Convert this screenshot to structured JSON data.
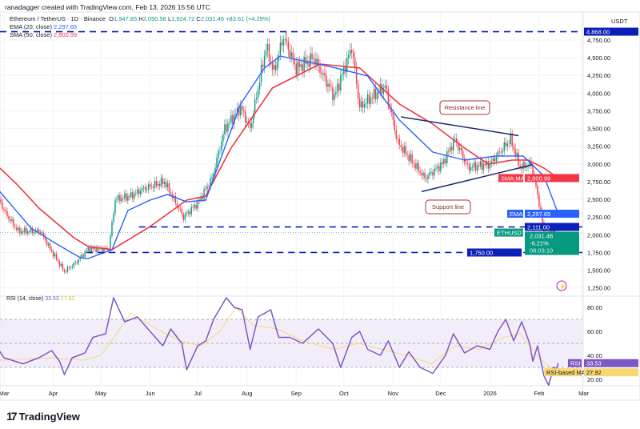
{
  "header": {
    "credit": "ranadagger created with TradingView.com, Feb 13, 2026 15:56 UTC"
  },
  "legend": {
    "symbol": "Ethereum / TetherUS · 1D · Binance",
    "open_label": "O",
    "open": "1,947.85",
    "high_label": "H",
    "high": "2,050.58",
    "low_label": "L",
    "low": "1,924.72",
    "close_label": "C",
    "close": "2,031.46",
    "change": "+83.61 (+4.29%)",
    "ema_label": "EMA (20, close)",
    "ema_value": "2,297.65",
    "sma_label": "SMA (50, close)",
    "sma_value": "2,800.99"
  },
  "rsi_legend": {
    "label": "RSI (14, close)",
    "rsi_value": "33.53",
    "ma_value": "27.92"
  },
  "price_axis": {
    "unit": "USDT"
  },
  "badges": {
    "sma_name": "SMA:MA",
    "sma_value": "2,800.99",
    "ema_name": "EMA",
    "ema_value": "2,297.65",
    "sym_name": "ETHUSDT",
    "last": "2,031.46",
    "pct": "-9.21%",
    "countdown": "08:03:10",
    "rsi_name": "RSI",
    "rsi_value": "33.53",
    "rsima_name": "RSI-based MA",
    "rsima_value": "27.92"
  },
  "brand": {
    "name": "TradingView"
  },
  "colors": {
    "up": "#089981",
    "down": "#f23645",
    "ema": "#2962ff",
    "sma": "#f23645",
    "level": "#0c1fb8",
    "trend": "#1b2a6b",
    "rsi": "#7e57c2",
    "rsi_ma": "#f7d774",
    "rsi_band": "#ede7f6"
  },
  "chart_data": [
    {
      "type": "candlestick",
      "title": "Ethereum / TetherUS · 1D · Binance",
      "ylabel": "USDT",
      "ylim": [
        1150,
        4950
      ],
      "y_ticks": [
        1250,
        1500,
        1750,
        2000,
        2250,
        2500,
        2750,
        3000,
        3250,
        3500,
        3750,
        4000,
        4250,
        4500,
        4750
      ],
      "y_tick_labels": [
        "1,250.00",
        "1,500.00",
        "1,750.00",
        "2,000.00",
        "2,250.00",
        "2,500.00",
        "2,750.00",
        "3,000.00",
        "3,250.00",
        "3,500.00",
        "3,750.00",
        "4,000.00",
        "4,250.00",
        "4,500.00",
        "4,750.00"
      ],
      "x_ticks": [
        [
          "2025-03-01",
          "Mar"
        ],
        [
          "2025-04-01",
          "Apr"
        ],
        [
          "2025-05-01",
          "May"
        ],
        [
          "2025-06-01",
          "Jun"
        ],
        [
          "2025-07-01",
          "Jul"
        ],
        [
          "2025-08-01",
          "Aug"
        ],
        [
          "2025-09-01",
          "Sep"
        ],
        [
          "2025-10-01",
          "Oct"
        ],
        [
          "2025-11-01",
          "Nov"
        ],
        [
          "2025-12-01",
          "Dec"
        ],
        [
          "2026-01-01",
          "2026"
        ],
        [
          "2026-02-01",
          "Feb"
        ],
        [
          "2026-03-01",
          "Mar"
        ]
      ],
      "close_path": [
        [
          "2025-02-26",
          2500
        ],
        [
          "2025-03-02",
          2300
        ],
        [
          "2025-03-10",
          2050
        ],
        [
          "2025-03-24",
          2050
        ],
        [
          "2025-03-30",
          1800
        ],
        [
          "2025-04-08",
          1480
        ],
        [
          "2025-04-15",
          1600
        ],
        [
          "2025-04-23",
          1800
        ],
        [
          "2025-05-06",
          1800
        ],
        [
          "2025-05-10",
          2500
        ],
        [
          "2025-05-20",
          2550
        ],
        [
          "2025-05-28",
          2650
        ],
        [
          "2025-06-10",
          2750
        ],
        [
          "2025-06-22",
          2250
        ],
        [
          "2025-07-01",
          2450
        ],
        [
          "2025-07-10",
          2800
        ],
        [
          "2025-07-18",
          3500
        ],
        [
          "2025-07-28",
          3800
        ],
        [
          "2025-08-03",
          3500
        ],
        [
          "2025-08-13",
          4650
        ],
        [
          "2025-08-18",
          4300
        ],
        [
          "2025-08-24",
          4800
        ],
        [
          "2025-09-01",
          4350
        ],
        [
          "2025-09-12",
          4500
        ],
        [
          "2025-09-25",
          3950
        ],
        [
          "2025-10-06",
          4650
        ],
        [
          "2025-10-11",
          3800
        ],
        [
          "2025-10-27",
          4100
        ],
        [
          "2025-11-04",
          3300
        ],
        [
          "2025-11-21",
          2800
        ],
        [
          "2025-12-02",
          3000
        ],
        [
          "2025-12-10",
          3350
        ],
        [
          "2025-12-18",
          2950
        ],
        [
          "2026-01-01",
          3000
        ],
        [
          "2026-01-14",
          3350
        ],
        [
          "2026-01-20",
          2950
        ],
        [
          "2026-01-27",
          3000
        ],
        [
          "2026-02-01",
          2450
        ],
        [
          "2026-02-05",
          1900
        ],
        [
          "2026-02-08",
          2100
        ],
        [
          "2026-02-12",
          1950
        ],
        [
          "2026-02-13",
          2031.46
        ]
      ],
      "ema20": [
        [
          "2025-02-26",
          2620
        ],
        [
          "2025-03-18",
          2095
        ],
        [
          "2025-04-01",
          1900
        ],
        [
          "2025-04-18",
          1677
        ],
        [
          "2025-04-23",
          1665
        ],
        [
          "2025-05-08",
          1790
        ],
        [
          "2025-05-18",
          2343
        ],
        [
          "2025-06-01",
          2490
        ],
        [
          "2025-06-12",
          2570
        ],
        [
          "2025-06-24",
          2465
        ],
        [
          "2025-07-06",
          2490
        ],
        [
          "2025-07-28",
          3846
        ],
        [
          "2025-08-12",
          4355
        ],
        [
          "2025-08-22",
          4524
        ],
        [
          "2025-09-26",
          4355
        ],
        [
          "2025-10-16",
          4242
        ],
        [
          "2025-11-05",
          3620
        ],
        [
          "2025-11-26",
          3168
        ],
        [
          "2025-12-16",
          3055
        ],
        [
          "2026-01-05",
          3112
        ],
        [
          "2026-01-22",
          3112
        ],
        [
          "2026-02-04",
          2829
        ],
        [
          "2026-02-13",
          2297.65
        ]
      ],
      "sma50": [
        [
          "2025-02-26",
          2950
        ],
        [
          "2025-03-09",
          2716
        ],
        [
          "2025-03-23",
          2377
        ],
        [
          "2025-04-14",
          1959
        ],
        [
          "2025-04-23",
          1835
        ],
        [
          "2025-05-08",
          1790
        ],
        [
          "2025-06-01",
          2117
        ],
        [
          "2025-06-24",
          2490
        ],
        [
          "2025-07-06",
          2546
        ],
        [
          "2025-07-22",
          3225
        ],
        [
          "2025-08-17",
          4072
        ],
        [
          "2025-09-16",
          4411
        ],
        [
          "2025-10-11",
          4355
        ],
        [
          "2025-11-05",
          3846
        ],
        [
          "2025-11-26",
          3564
        ],
        [
          "2025-12-16",
          3225
        ],
        [
          "2025-12-31",
          2998
        ],
        [
          "2026-01-15",
          3055
        ],
        [
          "2026-01-25",
          3055
        ],
        [
          "2026-02-04",
          2942
        ],
        [
          "2026-02-13",
          2800.99
        ]
      ],
      "horizontal_levels": [
        {
          "value": 4868,
          "label": "4,868.00"
        },
        {
          "value": 2111,
          "label": "2,111.00",
          "from": "2025-05-25"
        },
        {
          "value": 1750,
          "label": "1,750.00",
          "from": "2025-04-22"
        }
      ],
      "trendlines": [
        {
          "label": "Resistance line",
          "from": [
            "2025-11-06",
            3665
          ],
          "to": [
            "2026-01-19",
            3400
          ]
        },
        {
          "label": "Support line",
          "from": [
            "2025-11-19",
            2610
          ],
          "to": [
            "2026-01-28",
            2990
          ]
        }
      ]
    },
    {
      "type": "line",
      "title": "RSI (14, close)",
      "ylim": [
        10,
        95
      ],
      "y_ticks": [
        20,
        40,
        60,
        80
      ],
      "y_tick_labels": [
        "20.00",
        "40.00",
        "60.00",
        "80.00"
      ],
      "bands": [
        30,
        50,
        70
      ],
      "series": [
        {
          "name": "RSI",
          "values": [
            [
              "2025-02-26",
              44
            ],
            [
              "2025-03-01",
              38
            ],
            [
              "2025-03-13",
              33
            ],
            [
              "2025-03-23",
              38
            ],
            [
              "2025-03-31",
              44
            ],
            [
              "2025-04-05",
              35
            ],
            [
              "2025-04-08",
              24
            ],
            [
              "2025-04-13",
              38
            ],
            [
              "2025-04-21",
              42
            ],
            [
              "2025-04-26",
              55
            ],
            [
              "2025-05-04",
              58
            ],
            [
              "2025-05-09",
              88
            ],
            [
              "2025-05-16",
              68
            ],
            [
              "2025-05-24",
              72
            ],
            [
              "2025-06-01",
              60
            ],
            [
              "2025-06-09",
              48
            ],
            [
              "2025-06-14",
              62
            ],
            [
              "2025-06-21",
              50
            ],
            [
              "2025-06-24",
              28
            ],
            [
              "2025-07-01",
              48
            ],
            [
              "2025-07-06",
              52
            ],
            [
              "2025-07-11",
              70
            ],
            [
              "2025-07-19",
              88
            ],
            [
              "2025-07-24",
              80
            ],
            [
              "2025-07-29",
              78
            ],
            [
              "2025-08-03",
              45
            ],
            [
              "2025-08-08",
              72
            ],
            [
              "2025-08-16",
              78
            ],
            [
              "2025-08-21",
              55
            ],
            [
              "2025-08-28",
              55
            ],
            [
              "2025-09-05",
              50
            ],
            [
              "2025-09-15",
              62
            ],
            [
              "2025-09-24",
              50
            ],
            [
              "2025-09-29",
              30
            ],
            [
              "2025-10-06",
              55
            ],
            [
              "2025-10-11",
              60
            ],
            [
              "2025-10-16",
              45
            ],
            [
              "2025-10-24",
              40
            ],
            [
              "2025-10-29",
              52
            ],
            [
              "2025-11-05",
              30
            ],
            [
              "2025-11-11",
              43
            ],
            [
              "2025-11-18",
              30
            ],
            [
              "2025-11-26",
              25
            ],
            [
              "2025-12-04",
              40
            ],
            [
              "2025-12-09",
              58
            ],
            [
              "2025-12-16",
              42
            ],
            [
              "2025-12-24",
              48
            ],
            [
              "2026-01-01",
              45
            ],
            [
              "2026-01-06",
              60
            ],
            [
              "2026-01-11",
              70
            ],
            [
              "2026-01-16",
              52
            ],
            [
              "2026-01-21",
              68
            ],
            [
              "2026-01-26",
              50
            ],
            [
              "2026-01-28",
              35
            ],
            [
              "2026-01-31",
              48
            ],
            [
              "2026-02-04",
              23
            ],
            [
              "2026-02-07",
              15
            ],
            [
              "2026-02-10",
              30
            ],
            [
              "2026-02-12",
              29
            ],
            [
              "2026-02-13",
              33.53
            ]
          ]
        },
        {
          "name": "RSI-based MA",
          "values": [
            [
              "2025-02-26",
              36
            ],
            [
              "2025-04-01",
              38
            ],
            [
              "2025-04-20",
              36
            ],
            [
              "2025-05-01",
              40
            ],
            [
              "2025-05-12",
              60
            ],
            [
              "2025-05-20",
              75
            ],
            [
              "2025-06-05",
              62
            ],
            [
              "2025-06-20",
              52
            ],
            [
              "2025-07-03",
              48
            ],
            [
              "2025-07-15",
              60
            ],
            [
              "2025-07-25",
              80
            ],
            [
              "2025-08-05",
              65
            ],
            [
              "2025-08-20",
              62
            ],
            [
              "2025-09-05",
              52
            ],
            [
              "2025-09-25",
              45
            ],
            [
              "2025-10-10",
              50
            ],
            [
              "2025-10-25",
              45
            ],
            [
              "2025-11-10",
              40
            ],
            [
              "2025-11-25",
              33
            ],
            [
              "2025-12-10",
              48
            ],
            [
              "2025-12-25",
              45
            ],
            [
              "2026-01-10",
              55
            ],
            [
              "2026-01-20",
              58
            ],
            [
              "2026-02-01",
              38
            ],
            [
              "2026-02-08",
              30
            ],
            [
              "2026-02-13",
              27.92
            ]
          ]
        }
      ]
    }
  ]
}
